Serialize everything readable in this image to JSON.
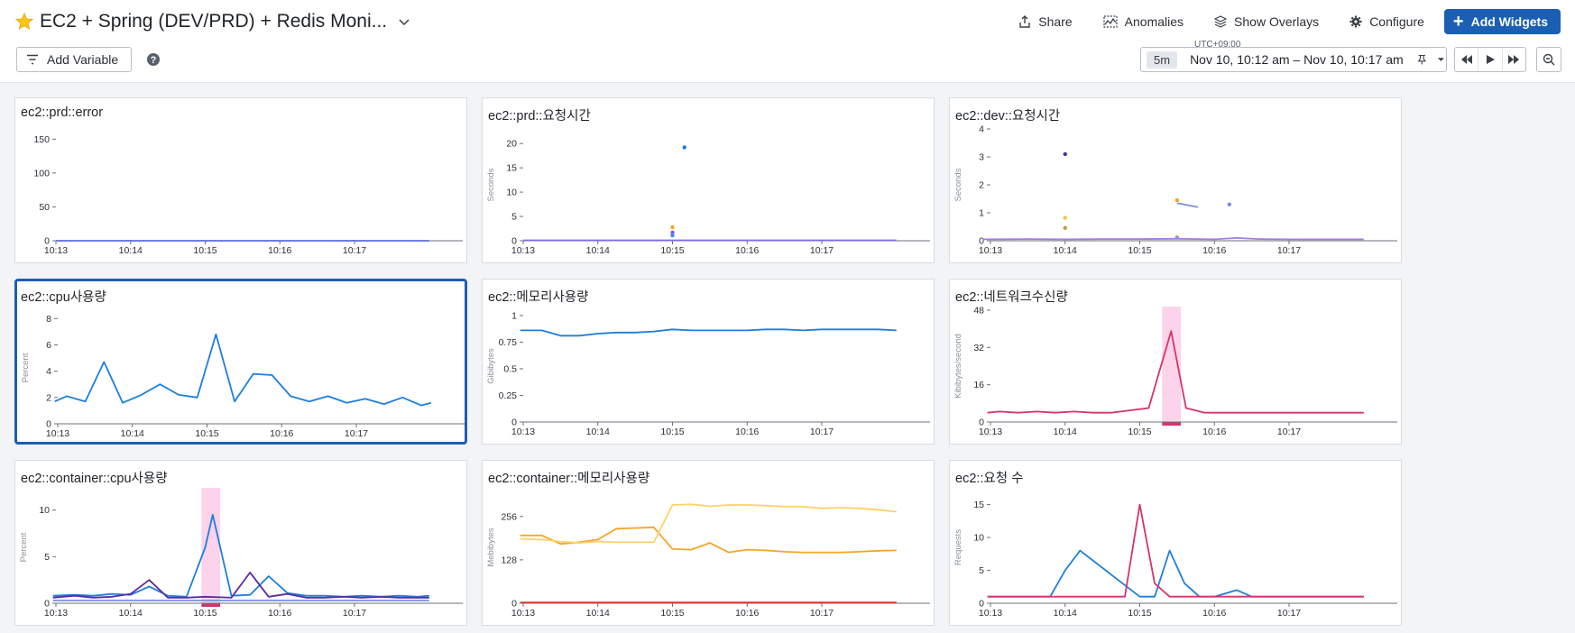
{
  "header": {
    "title": "EC2 + Spring (DEV/PRD) + Redis Moni...",
    "share_label": "Share",
    "anomalies_label": "Anomalies",
    "overlays_label": "Show Overlays",
    "configure_label": "Configure",
    "add_widgets_label": "Add Widgets",
    "add_variable_label": "Add Variable",
    "star_color": "#f5c518",
    "accent_color": "#1a5fb4"
  },
  "timepicker": {
    "timezone": "UTC+09:00",
    "badge": "5m",
    "range": "Nov 10, 10:12 am – Nov 10, 10:17 am"
  },
  "icons": {
    "share": "share-icon",
    "anomalies": "anomalies-icon",
    "overlays": "layers-icon",
    "configure": "gear-icon",
    "help": "help-icon",
    "pin": "pin-icon",
    "prev": "rewind-icon",
    "play": "play-icon",
    "next": "fast-forward-icon",
    "zoom": "zoom-out-icon"
  },
  "widgets": [
    {
      "title": "ec2::prd::error"
    },
    {
      "title": "ec2::prd::요청시간"
    },
    {
      "title": "ec2::dev::요청시간"
    },
    {
      "title": "ec2::cpu사용량"
    },
    {
      "title": "ec2::메모리사용량"
    },
    {
      "title": "ec2::네트워크수신량"
    },
    {
      "title": "ec2::container::cpu사용량"
    },
    {
      "title": "ec2::container::메모리사용량"
    },
    {
      "title": "ec2::요청 수"
    }
  ],
  "chart_data": [
    {
      "type": "line",
      "title": "ec2::prd::error",
      "ylabel": "",
      "xticks": [
        "10:13",
        "10:14",
        "10:15",
        "10:16",
        "10:17"
      ],
      "yticks": [
        0,
        50,
        100,
        150
      ],
      "ylim": [
        0,
        165
      ],
      "series": [
        {
          "color": "#5b6ee1",
          "kind": "line",
          "x": [
            0,
            5
          ],
          "y": [
            0,
            0
          ]
        }
      ]
    },
    {
      "type": "scatter",
      "title": "ec2::prd::요청시간",
      "ylabel": "Seconds",
      "xticks": [
        "10:13",
        "10:14",
        "10:15",
        "10:16",
        "10:17"
      ],
      "yticks": [
        0,
        5,
        10,
        15,
        20
      ],
      "ylim": [
        0,
        23
      ],
      "series": [
        {
          "color": "#1c7fdc",
          "kind": "points",
          "x": [
            2.16
          ],
          "y": [
            19.2
          ]
        },
        {
          "color": "#f5a623",
          "kind": "points",
          "x": [
            2.0
          ],
          "y": [
            2.8
          ]
        },
        {
          "color": "#8a5cd6",
          "kind": "points",
          "x": [
            2.0
          ],
          "y": [
            1.7
          ]
        },
        {
          "color": "#3d8bfd",
          "kind": "points",
          "x": [
            2.0
          ],
          "y": [
            1.1
          ]
        },
        {
          "color": "#7b6ee8",
          "kind": "line",
          "x": [
            0,
            5
          ],
          "y": [
            0.1,
            0.1
          ]
        }
      ]
    },
    {
      "type": "line",
      "title": "ec2::dev::요청시간",
      "ylabel": "Seconds",
      "xticks": [
        "10:13",
        "10:14",
        "10:15",
        "10:16",
        "10:17"
      ],
      "yticks": [
        0,
        1,
        2,
        3,
        4
      ],
      "ylim": [
        0,
        4
      ],
      "series": [
        {
          "color": "#3b3aa7",
          "kind": "points",
          "x": [
            1.0
          ],
          "y": [
            3.1
          ]
        },
        {
          "color": "#f5c542",
          "kind": "points",
          "x": [
            1.0
          ],
          "y": [
            0.82
          ]
        },
        {
          "color": "#c69b3a",
          "kind": "points",
          "x": [
            1.0
          ],
          "y": [
            0.46
          ]
        },
        {
          "color": "#f5a623",
          "kind": "points",
          "x": [
            2.5
          ],
          "y": [
            1.45
          ]
        },
        {
          "color": "#8a9bd9",
          "kind": "points",
          "x": [
            2.5
          ],
          "y": [
            0.12
          ]
        },
        {
          "color": "#7b8ee8",
          "kind": "points",
          "x": [
            3.2
          ],
          "y": [
            1.3
          ]
        },
        {
          "color": "#7b8ee8",
          "kind": "line",
          "x": [
            2.5,
            2.78
          ],
          "y": [
            1.35,
            1.2
          ]
        },
        {
          "color": "#a07de8",
          "kind": "line",
          "x": [
            -0.1,
            0.5,
            1.0,
            1.5,
            2.0,
            2.5,
            3.0,
            3.3,
            3.6,
            4.0,
            4.5,
            5.0
          ],
          "y": [
            0.05,
            0.06,
            0.05,
            0.06,
            0.06,
            0.07,
            0.05,
            0.1,
            0.06,
            0.05,
            0.05,
            0.05
          ]
        }
      ]
    },
    {
      "type": "line",
      "title": "ec2::cpu사용량",
      "ylabel": "Percent",
      "xticks": [
        "10:13",
        "10:14",
        "10:15",
        "10:16",
        "10:17"
      ],
      "yticks": [
        0,
        2,
        4,
        6,
        8
      ],
      "ylim": [
        0,
        8.5
      ],
      "series": [
        {
          "color": "#1c7fdc",
          "kind": "line",
          "x": [
            -0.04,
            0.12,
            0.37,
            0.62,
            0.87,
            1.12,
            1.37,
            1.62,
            1.87,
            2.12,
            2.37,
            2.62,
            2.87,
            3.12,
            3.37,
            3.62,
            3.87,
            4.12,
            4.37,
            4.62,
            4.87,
            5.0
          ],
          "y": [
            1.7,
            2.1,
            1.7,
            4.7,
            1.6,
            2.2,
            3.0,
            2.2,
            2.0,
            6.8,
            1.7,
            3.8,
            3.7,
            2.1,
            1.7,
            2.1,
            1.6,
            1.9,
            1.5,
            2.0,
            1.4,
            1.6
          ]
        }
      ]
    },
    {
      "type": "line",
      "title": "ec2::메모리사용량",
      "ylabel": "Gibibytes",
      "xticks": [
        "10:13",
        "10:14",
        "10:15",
        "10:16",
        "10:17"
      ],
      "yticks": [
        0,
        0.25,
        0.5,
        0.75,
        1
      ],
      "ylim": [
        0,
        1.05
      ],
      "series": [
        {
          "color": "#1c7fdc",
          "kind": "line",
          "x": [
            -0.04,
            0.25,
            0.5,
            0.75,
            1.0,
            1.25,
            1.5,
            1.75,
            2.0,
            2.25,
            2.5,
            2.75,
            3.0,
            3.25,
            3.5,
            3.75,
            4.0,
            4.25,
            4.5,
            4.75,
            5.0
          ],
          "y": [
            0.86,
            0.86,
            0.81,
            0.81,
            0.83,
            0.84,
            0.84,
            0.85,
            0.87,
            0.86,
            0.86,
            0.86,
            0.86,
            0.87,
            0.87,
            0.86,
            0.87,
            0.87,
            0.87,
            0.87,
            0.86
          ]
        }
      ]
    },
    {
      "type": "area",
      "title": "ec2::네트워크수신량",
      "ylabel": "Kibibytes/second",
      "xticks": [
        "10:13",
        "10:14",
        "10:15",
        "10:16",
        "10:17"
      ],
      "yticks": [
        0,
        16,
        32,
        48
      ],
      "ylim": [
        0,
        48
      ],
      "highlight": {
        "x0": 2.3,
        "x1": 2.55,
        "color": "#fbd3ea"
      },
      "series": [
        {
          "color": "#d6336c",
          "kind": "line",
          "x": [
            -0.04,
            0.12,
            0.37,
            0.62,
            0.87,
            1.12,
            1.37,
            1.62,
            1.87,
            2.12,
            2.42,
            2.62,
            2.87,
            3.12,
            3.37,
            3.62,
            3.87,
            4.12,
            4.37,
            4.62,
            4.87,
            5.0
          ],
          "y": [
            4,
            4.5,
            4,
            4.5,
            4,
            4.5,
            4,
            4,
            5,
            6,
            39,
            6,
            4,
            4,
            4,
            4,
            4,
            4,
            4,
            4,
            4,
            4
          ]
        }
      ]
    },
    {
      "type": "line",
      "title": "ec2::container::cpu사용량",
      "ylabel": "Percent",
      "xticks": [
        "10:13",
        "10:14",
        "10:15",
        "10:16",
        "10:17"
      ],
      "yticks": [
        0,
        5,
        10
      ],
      "ylim": [
        0,
        12
      ],
      "highlight": {
        "x0": 1.95,
        "x1": 2.2,
        "color": "#fbd3ea"
      },
      "series": [
        {
          "color": "#1c7fdc",
          "kind": "line",
          "x": [
            -0.04,
            0.25,
            0.5,
            0.75,
            1.0,
            1.25,
            1.5,
            1.75,
            2.0,
            2.1,
            2.35,
            2.6,
            2.85,
            3.1,
            3.35,
            3.6,
            3.85,
            4.1,
            4.35,
            4.6,
            4.85,
            5.0
          ],
          "y": [
            0.8,
            0.9,
            0.8,
            1.0,
            0.9,
            1.8,
            0.8,
            0.7,
            6,
            9.5,
            0.8,
            0.9,
            2.9,
            1.1,
            0.8,
            0.8,
            0.7,
            0.8,
            0.7,
            0.8,
            0.7,
            0.8
          ]
        },
        {
          "color": "#5a2ca0",
          "kind": "line",
          "x": [
            -0.04,
            0.25,
            0.5,
            0.75,
            1.0,
            1.25,
            1.5,
            1.75,
            2.0,
            2.35,
            2.6,
            2.85,
            3.1,
            3.35,
            3.6,
            3.85,
            4.1,
            4.35,
            4.6,
            4.85,
            5.0
          ],
          "y": [
            0.6,
            0.8,
            0.6,
            0.7,
            1.0,
            2.5,
            0.6,
            0.6,
            0.7,
            0.6,
            3.3,
            0.7,
            1.0,
            0.6,
            0.6,
            0.7,
            0.6,
            0.7,
            0.6,
            0.6,
            0.6
          ]
        },
        {
          "color": "#7b8ee8",
          "kind": "line",
          "x": [
            -0.04,
            5.0
          ],
          "y": [
            0.3,
            0.3
          ]
        }
      ]
    },
    {
      "type": "line",
      "title": "ec2::container::메모리사용량",
      "ylabel": "Mebibytes",
      "xticks": [
        "10:13",
        "10:14",
        "10:15",
        "10:16",
        "10:17"
      ],
      "yticks": [
        0,
        128,
        256
      ],
      "ylim": [
        0,
        330
      ],
      "series": [
        {
          "color": "#f5a623",
          "kind": "line",
          "x": [
            -0.04,
            0.25,
            0.5,
            0.75,
            1.0,
            1.25,
            1.5,
            1.75,
            2.0,
            2.25,
            2.5,
            2.75,
            3.0,
            3.25,
            3.5,
            3.75,
            4.0,
            4.25,
            4.5,
            4.75,
            5.0
          ],
          "y": [
            200,
            200,
            175,
            180,
            188,
            220,
            222,
            224,
            160,
            158,
            178,
            150,
            158,
            156,
            152,
            150,
            150,
            150,
            152,
            155,
            156
          ]
        },
        {
          "color": "#ffd166",
          "kind": "line",
          "x": [
            -0.04,
            0.25,
            0.5,
            0.75,
            1.0,
            1.25,
            1.5,
            1.75,
            2.0,
            2.25,
            2.5,
            2.75,
            3.0,
            3.25,
            3.5,
            3.75,
            4.0,
            4.25,
            4.5,
            4.75,
            5.0
          ],
          "y": [
            190,
            188,
            182,
            178,
            182,
            180,
            180,
            180,
            290,
            292,
            286,
            290,
            290,
            288,
            285,
            285,
            280,
            282,
            280,
            276,
            270
          ]
        },
        {
          "color": "#d63b2f",
          "kind": "line",
          "x": [
            -0.04,
            5.0
          ],
          "y": [
            2,
            2
          ]
        }
      ]
    },
    {
      "type": "line",
      "title": "ec2::요청 수",
      "ylabel": "Requests",
      "xticks": [
        "10:13",
        "10:14",
        "10:15",
        "10:16",
        "10:17"
      ],
      "yticks": [
        0,
        5,
        10,
        15
      ],
      "ylim": [
        0,
        17
      ],
      "series": [
        {
          "color": "#1c7fdc",
          "kind": "line",
          "x": [
            -0.04,
            0.8,
            1.0,
            1.2,
            2.0,
            2.2,
            2.4,
            2.6,
            2.8,
            3.0,
            3.3,
            3.5,
            5.0
          ],
          "y": [
            1,
            1,
            5,
            8,
            1,
            1,
            8,
            3,
            1,
            1,
            2,
            1,
            1
          ]
        },
        {
          "color": "#d6336c",
          "kind": "line",
          "x": [
            -0.04,
            1.8,
            2.0,
            2.2,
            2.4,
            5.0
          ],
          "y": [
            1,
            1,
            15,
            3,
            1,
            1
          ]
        }
      ]
    }
  ]
}
